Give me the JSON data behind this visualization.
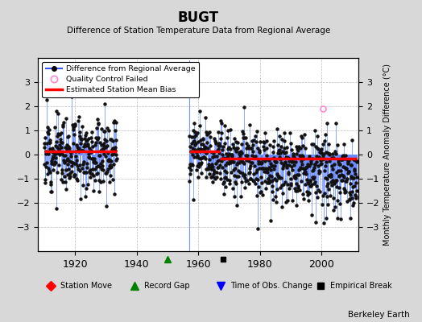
{
  "title": "BUGT",
  "subtitle": "Difference of Station Temperature Data from Regional Average",
  "ylabel_right": "Monthly Temperature Anomaly Difference (°C)",
  "footer": "Berkeley Earth",
  "ylim": [
    -4,
    4
  ],
  "xlim": [
    1908,
    2012
  ],
  "xticks": [
    1920,
    1940,
    1960,
    1980,
    2000
  ],
  "yticks": [
    -3,
    -2,
    -1,
    0,
    1,
    2,
    3
  ],
  "period1_start": 1910.0,
  "period1_end": 1933.5,
  "period2_start": 1957.0,
  "period2_end": 2011.5,
  "bias1_start": 1910.0,
  "bias1_end": 1933.5,
  "bias1_value": 0.12,
  "bias2a_start": 1957.0,
  "bias2a_end": 1967.0,
  "bias2a_value": 0.12,
  "bias2b_start": 1967.0,
  "bias2b_end": 2011.5,
  "bias2b_value": -0.18,
  "gap_line_x": 1957.0,
  "record_gap_x": 1950.0,
  "obs_change_x": 1968.0,
  "background_color": "#d8d8d8",
  "plot_bg_color": "#ffffff",
  "line_color": "#6688ff",
  "bias_color": "#ff0000",
  "marker_color": "#111111",
  "seed": 12
}
